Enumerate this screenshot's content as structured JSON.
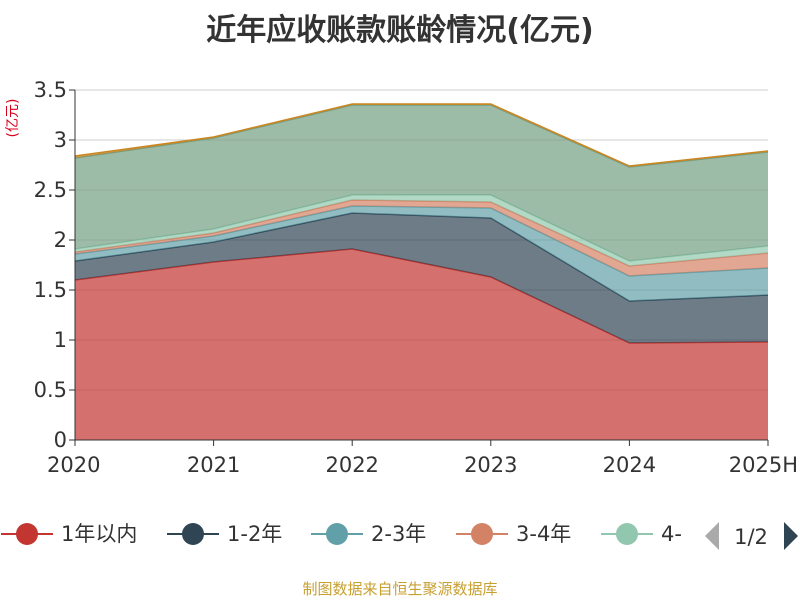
{
  "chart_data": {
    "type": "area",
    "stacked": true,
    "title": "近年应收账款账龄情况(亿元)",
    "unit_label": "(亿元)",
    "x": [
      "2020",
      "2021",
      "2022",
      "2023",
      "2024",
      "2025H"
    ],
    "ylim": [
      0,
      3.5
    ],
    "yticks": [
      0,
      0.5,
      1,
      1.5,
      2,
      2.5,
      3,
      3.5
    ],
    "ytick_labels": [
      "0",
      "0.5",
      "1",
      "1.5",
      "2",
      "2.5",
      "3",
      "3.5"
    ],
    "grid": true,
    "legend_position": "bottom",
    "series": [
      {
        "name": "1年以内",
        "color": "#c23531",
        "values": [
          1.6,
          1.78,
          1.91,
          1.63,
          0.97,
          0.98
        ]
      },
      {
        "name": "1-2年",
        "color": "#2f4554",
        "values": [
          0.19,
          0.2,
          0.36,
          0.59,
          0.42,
          0.47
        ]
      },
      {
        "name": "2-3年",
        "color": "#61a0a8",
        "values": [
          0.07,
          0.06,
          0.07,
          0.1,
          0.25,
          0.27
        ]
      },
      {
        "name": "3-4年",
        "color": "#d48265",
        "values": [
          0.02,
          0.03,
          0.06,
          0.06,
          0.1,
          0.15
        ]
      },
      {
        "name": "4-",
        "color": "#91c7ae",
        "values": [
          0.03,
          0.04,
          0.05,
          0.07,
          0.05,
          0.07
        ]
      },
      {
        "color": "#749f83",
        "values": [
          0.91,
          0.91,
          0.9,
          0.9,
          0.94,
          0.94
        ]
      },
      {
        "color": "#ca8622",
        "values": [
          0.02,
          0.01,
          0.01,
          0.01,
          0.01,
          0.01
        ]
      }
    ]
  },
  "legend": {
    "pager_label": "1/2"
  },
  "footer": {
    "source": "制图数据来自恒生聚源数据库"
  }
}
